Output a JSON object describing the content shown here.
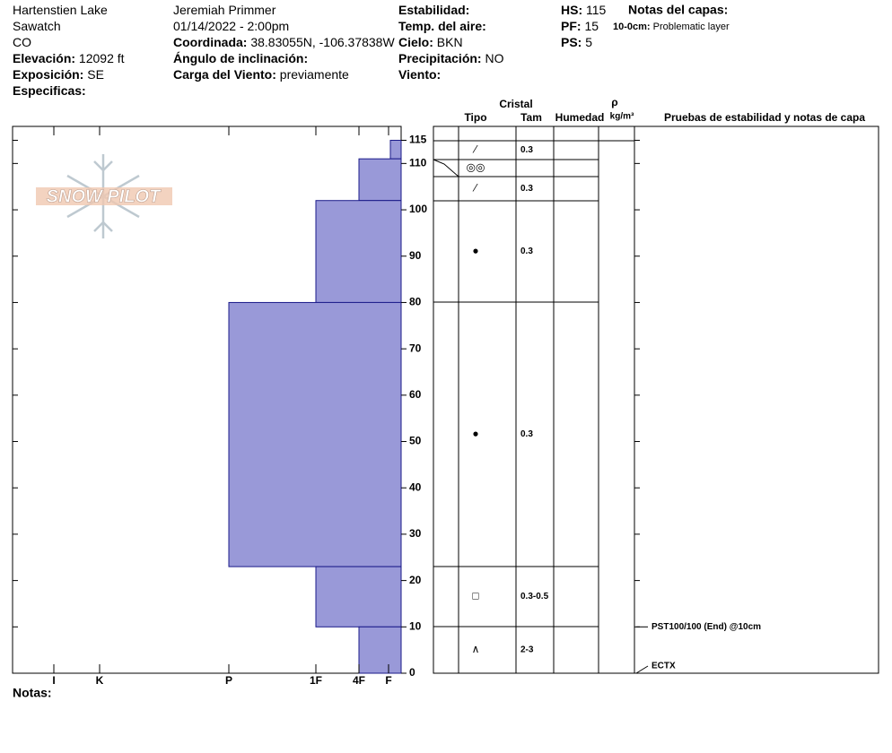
{
  "header": {
    "columns": [
      [
        {
          "value": "Hartenstien Lake"
        },
        {
          "value": "Sawatch"
        },
        {
          "value": "CO"
        },
        {
          "label": "Elevación:",
          "value": "12092 ft"
        },
        {
          "label": "Exposición:",
          "value": "SE"
        },
        {
          "label": "Especificas:"
        }
      ],
      [
        {
          "value": "Jeremiah Primmer"
        },
        {
          "value": "01/14/2022 - 2:00pm"
        },
        {
          "label": "Coordinada:",
          "value": "38.83055N, -106.37838W"
        },
        {
          "label": "Ángulo de inclinación:"
        },
        {
          "label": "Carga del Viento:",
          "value": "previamente"
        }
      ],
      [
        {
          "label": "Estabilidad:"
        },
        {
          "label": "Temp. del aire:"
        },
        {
          "label": "Cielo:",
          "value": "BKN"
        },
        {
          "label": "Precipitación:",
          "value": "NO"
        },
        {
          "label": "Viento:"
        }
      ],
      [
        {
          "label": "HS:",
          "value": "115"
        },
        {
          "label": "PF:",
          "value": "15"
        },
        {
          "label": "PS:",
          "value": "5"
        }
      ]
    ],
    "notes_title": "Notas del capas:",
    "layer_notes": [
      {
        "label": "10-0cm:",
        "value": "Problematic layer"
      }
    ]
  },
  "logo": "SNOW PILOT",
  "chart_data": {
    "type": "snow-profile",
    "ylim": [
      0,
      118
    ],
    "yticks": [
      0,
      10,
      20,
      30,
      40,
      50,
      60,
      70,
      80,
      90,
      100,
      110,
      115
    ],
    "hardness_ticks": [
      "I",
      "K",
      "P",
      "1F",
      "4F",
      "F"
    ],
    "color": "#9999d8",
    "layers": [
      {
        "top": 115,
        "bottom": 111,
        "hardness": "F"
      },
      {
        "top": 111,
        "bottom": 102,
        "hardness": "4F"
      },
      {
        "top": 102,
        "bottom": 80,
        "hardness": "1F"
      },
      {
        "top": 80,
        "bottom": 23,
        "hardness": "P"
      },
      {
        "top": 23,
        "bottom": 10,
        "hardness": "1F"
      },
      {
        "top": 10,
        "bottom": 0,
        "hardness": "4F"
      }
    ]
  },
  "table": {
    "header": {
      "crystal": "Cristal",
      "type": "Tipo",
      "size": "Tam",
      "wetness": "Humedad",
      "rho": "ρ",
      "density_unit": "kg/m³",
      "tests": "Pruebas de estabilidad y notas de capa"
    },
    "rows": [
      {
        "grain": "⁄",
        "size": "0.3"
      },
      {
        "grain": "◎◎"
      },
      {
        "grain": "⁄",
        "size": "0.3"
      },
      {
        "grain": "●",
        "size": "0.3"
      },
      {
        "grain": "●",
        "size": "0.3"
      },
      {
        "grain": "□",
        "size": "0.3-0.5"
      },
      {
        "grain": "∧",
        "size": "2-3"
      }
    ],
    "tests": [
      {
        "text": "PST100/100 (End) @10cm",
        "depth": 10
      },
      {
        "text": "ECTX",
        "depth": 0
      }
    ]
  },
  "footer": {
    "notes": "Notas:"
  }
}
